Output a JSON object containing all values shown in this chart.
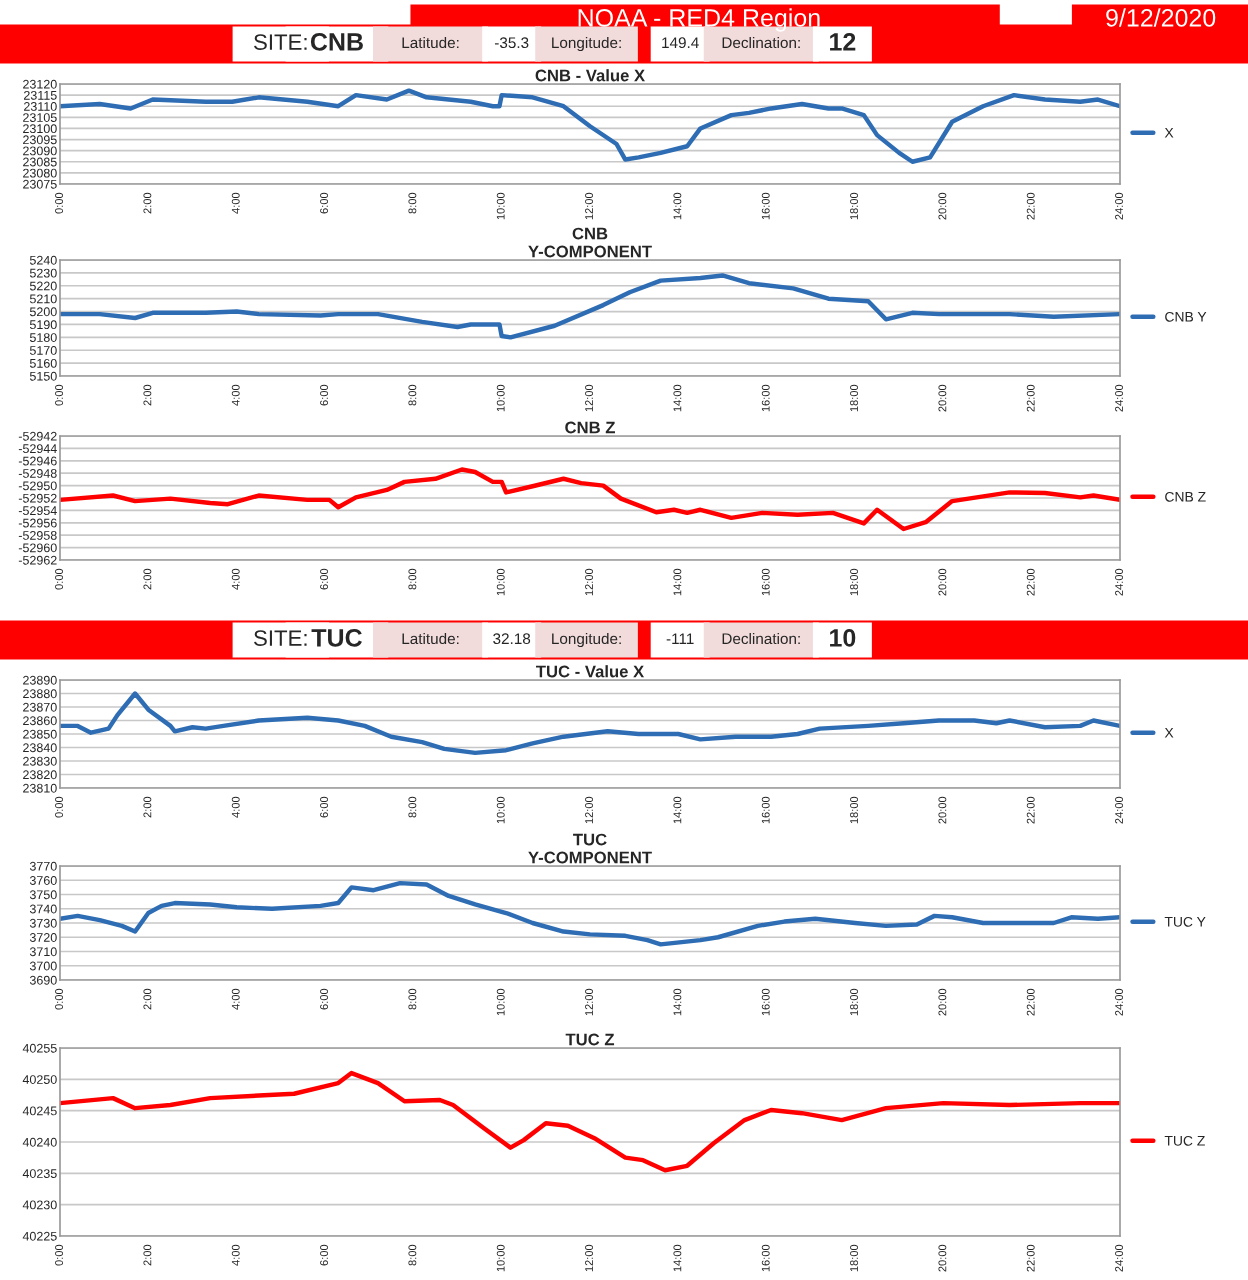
{
  "chart_data": [
    {
      "type": "line",
      "title": "CNB - Value X",
      "annotations": [
        "NOAA - RED4 Region",
        "9/12/2020",
        "SITE:",
        "CNB",
        "Latitude:",
        "-35.3",
        "Longitude:",
        "149.4",
        "Declination:",
        "12"
      ],
      "xlim": [
        0,
        24
      ],
      "ylim": [
        23075,
        23120
      ],
      "yticks": [
        23075,
        23080,
        23085,
        23090,
        23095,
        23100,
        23105,
        23110,
        23115,
        23120
      ],
      "grid": "y",
      "legend": "right",
      "xticks": [
        {
          "value": 0,
          "label": "0:00"
        },
        {
          "value": 2,
          "label": "2:00"
        },
        {
          "value": 4,
          "label": "4:00"
        },
        {
          "value": 6,
          "label": "6:00"
        },
        {
          "value": 8,
          "label": "8:00"
        },
        {
          "value": 10,
          "label": "10:00"
        },
        {
          "value": 12,
          "label": "12:00"
        },
        {
          "value": 14,
          "label": "14:00"
        },
        {
          "value": 16,
          "label": "16:00"
        },
        {
          "value": 18,
          "label": "18:00"
        },
        {
          "value": 20,
          "label": "20:00"
        },
        {
          "value": 22,
          "label": "22:00"
        },
        {
          "value": 24,
          "label": "24:00"
        }
      ],
      "series": [
        {
          "name": "X",
          "color": "#2e6db4",
          "x": [
            0,
            0.9,
            1.6,
            2.1,
            3.3,
            3.9,
            4.5,
            5.6,
            6.3,
            6.7,
            7.4,
            7.9,
            8.3,
            9.3,
            9.8,
            9.95,
            10.0,
            10.7,
            11.4,
            12.0,
            12.6,
            12.8,
            13.1,
            13.6,
            14.2,
            14.5,
            15.2,
            15.6,
            16.1,
            16.8,
            17.4,
            17.7,
            18.2,
            18.5,
            19.0,
            19.3,
            19.7,
            20.2,
            20.9,
            21.6,
            22.3,
            23.1,
            23.5,
            24
          ],
          "values": [
            23110,
            23111,
            23109,
            23113,
            23112,
            23112,
            23114,
            23112,
            23110,
            23115,
            23113,
            23117,
            23114,
            23112,
            23110,
            23110,
            23115,
            23114,
            23110,
            23101,
            23093,
            23086,
            23087,
            23089,
            23092,
            23100,
            23106,
            23107,
            23109,
            23111,
            23109,
            23109,
            23106,
            23097,
            23089,
            23085,
            23087,
            23103,
            23110,
            23115,
            23113,
            23112,
            23113,
            23110
          ]
        }
      ]
    },
    {
      "type": "line",
      "title": "CNB\nY-COMPONENT",
      "xlim": [
        0,
        24
      ],
      "ylim": [
        5150,
        5240
      ],
      "yticks": [
        5150,
        5160,
        5170,
        5180,
        5190,
        5200,
        5210,
        5220,
        5230,
        5240
      ],
      "grid": "y",
      "legend": "right",
      "xticks": [
        {
          "value": 0,
          "label": "0:00"
        },
        {
          "value": 2,
          "label": "2:00"
        },
        {
          "value": 4,
          "label": "4:00"
        },
        {
          "value": 6,
          "label": "6:00"
        },
        {
          "value": 8,
          "label": "8:00"
        },
        {
          "value": 10,
          "label": "10:00"
        },
        {
          "value": 12,
          "label": "12:00"
        },
        {
          "value": 14,
          "label": "14:00"
        },
        {
          "value": 16,
          "label": "16:00"
        },
        {
          "value": 18,
          "label": "18:00"
        },
        {
          "value": 20,
          "label": "20:00"
        },
        {
          "value": 22,
          "label": "22:00"
        },
        {
          "value": 24,
          "label": "24:00"
        }
      ],
      "series": [
        {
          "name": "CNB Y",
          "color": "#2e6db4",
          "x": [
            0,
            0.9,
            1.7,
            2.1,
            3.3,
            4.0,
            4.5,
            5.9,
            6.3,
            7.2,
            8.2,
            9.0,
            9.3,
            9.95,
            10.0,
            10.2,
            11.2,
            12.3,
            12.9,
            13.6,
            14.5,
            15.0,
            15.6,
            16.6,
            17.4,
            18.3,
            18.7,
            19.3,
            19.9,
            21.5,
            22.5,
            24
          ],
          "values": [
            5198,
            5198,
            5195,
            5199,
            5199,
            5200,
            5198,
            5197,
            5198,
            5198,
            5192,
            5188,
            5190,
            5190,
            5181,
            5180,
            5189,
            5205,
            5215,
            5224,
            5226,
            5228,
            5222,
            5218,
            5210,
            5208,
            5194,
            5199,
            5198,
            5198,
            5196,
            5198
          ]
        }
      ]
    },
    {
      "type": "line",
      "title": "CNB Z",
      "xlim": [
        0,
        24
      ],
      "ylim": [
        -52962,
        -52942
      ],
      "yticks": [
        -52962,
        -52960,
        -52958,
        -52956,
        -52954,
        -52952,
        -52950,
        -52948,
        -52946,
        -52944,
        -52942
      ],
      "grid": "y",
      "legend": "right",
      "xticks": [
        {
          "value": 0,
          "label": "0:00"
        },
        {
          "value": 2,
          "label": "2:00"
        },
        {
          "value": 4,
          "label": "4:00"
        },
        {
          "value": 6,
          "label": "6:00"
        },
        {
          "value": 8,
          "label": "8:00"
        },
        {
          "value": 10,
          "label": "10:00"
        },
        {
          "value": 12,
          "label": "12:00"
        },
        {
          "value": 14,
          "label": "14:00"
        },
        {
          "value": 16,
          "label": "16:00"
        },
        {
          "value": 18,
          "label": "18:00"
        },
        {
          "value": 20,
          "label": "20:00"
        },
        {
          "value": 22,
          "label": "22:00"
        },
        {
          "value": 24,
          "label": "24:00"
        }
      ],
      "series": [
        {
          "name": "CNB Z",
          "color": "#ff0000",
          "x": [
            0,
            1.2,
            1.7,
            2.5,
            3.4,
            3.8,
            4.5,
            5.6,
            6.1,
            6.3,
            6.7,
            7.4,
            7.8,
            8.5,
            9.1,
            9.4,
            9.8,
            10.0,
            10.1,
            10.7,
            11.4,
            11.8,
            12.3,
            12.7,
            13.5,
            13.9,
            14.2,
            14.5,
            15.2,
            15.9,
            16.7,
            17.5,
            18.2,
            18.5,
            19.1,
            19.6,
            20.2,
            21.5,
            22.3,
            23.1,
            23.4,
            24
          ],
          "values": [
            -52952.3,
            -52951.6,
            -52952.5,
            -52952.1,
            -52952.8,
            -52953.0,
            -52951.6,
            -52952.3,
            -52952.3,
            -52953.5,
            -52951.9,
            -52950.7,
            -52949.4,
            -52948.9,
            -52947.4,
            -52947.8,
            -52949.4,
            -52949.4,
            -52951.1,
            -52950.1,
            -52948.9,
            -52949.6,
            -52950.0,
            -52952.1,
            -52954.3,
            -52953.9,
            -52954.4,
            -52953.9,
            -52955.2,
            -52954.4,
            -52954.7,
            -52954.4,
            -52956.1,
            -52953.9,
            -52957.0,
            -52955.9,
            -52952.5,
            -52951.1,
            -52951.2,
            -52951.9,
            -52951.6,
            -52952.3
          ]
        }
      ]
    },
    {
      "type": "line",
      "title": "TUC - Value X",
      "annotations": [
        "SITE:",
        "TUC",
        "Latitude:",
        "32.18",
        "Longitude:",
        "-111",
        "Declination:",
        "10"
      ],
      "xlim": [
        0,
        24
      ],
      "ylim": [
        23810,
        23890
      ],
      "yticks": [
        23810,
        23820,
        23830,
        23840,
        23850,
        23860,
        23870,
        23880,
        23890
      ],
      "grid": "y",
      "legend": "right",
      "xticks": [
        {
          "value": 0,
          "label": "0:00"
        },
        {
          "value": 2,
          "label": "2:00"
        },
        {
          "value": 4,
          "label": "4:00"
        },
        {
          "value": 6,
          "label": "6:00"
        },
        {
          "value": 8,
          "label": "8:00"
        },
        {
          "value": 10,
          "label": "10:00"
        },
        {
          "value": 12,
          "label": "12:00"
        },
        {
          "value": 14,
          "label": "14:00"
        },
        {
          "value": 16,
          "label": "16:00"
        },
        {
          "value": 18,
          "label": "18:00"
        },
        {
          "value": 20,
          "label": "20:00"
        },
        {
          "value": 22,
          "label": "22:00"
        },
        {
          "value": 24,
          "label": "24:00"
        }
      ],
      "series": [
        {
          "name": "X",
          "color": "#2e6db4",
          "x": [
            0,
            0.4,
            0.7,
            1.1,
            1.3,
            1.7,
            2.0,
            2.5,
            2.6,
            3.0,
            3.3,
            3.7,
            4.5,
            5.6,
            6.3,
            6.9,
            7.5,
            8.2,
            8.7,
            9.4,
            10.1,
            10.7,
            11.4,
            12.4,
            13.1,
            14.0,
            14.5,
            15.3,
            16.1,
            16.7,
            17.2,
            18.3,
            19.1,
            19.9,
            20.7,
            21.2,
            21.5,
            22.3,
            23.1,
            23.4,
            24
          ],
          "values": [
            23856,
            23856,
            23851,
            23854,
            23864,
            23880,
            23868,
            23856,
            23852,
            23855,
            23854,
            23856,
            23860,
            23862,
            23860,
            23856,
            23848,
            23844,
            23839,
            23836,
            23838,
            23843,
            23848,
            23852,
            23850,
            23850,
            23846,
            23848,
            23848,
            23850,
            23854,
            23856,
            23858,
            23860,
            23860,
            23858,
            23860,
            23855,
            23856,
            23860,
            23856
          ]
        }
      ]
    },
    {
      "type": "line",
      "title": "TUC\nY-COMPONENT",
      "xlim": [
        0,
        24
      ],
      "ylim": [
        3690,
        3770
      ],
      "yticks": [
        3690,
        3700,
        3710,
        3720,
        3730,
        3740,
        3750,
        3760,
        3770
      ],
      "grid": "y",
      "legend": "right",
      "xticks": [
        {
          "value": 0,
          "label": "0:00"
        },
        {
          "value": 2,
          "label": "2:00"
        },
        {
          "value": 4,
          "label": "4:00"
        },
        {
          "value": 6,
          "label": "6:00"
        },
        {
          "value": 8,
          "label": "8:00"
        },
        {
          "value": 10,
          "label": "10:00"
        },
        {
          "value": 12,
          "label": "12:00"
        },
        {
          "value": 14,
          "label": "14:00"
        },
        {
          "value": 16,
          "label": "16:00"
        },
        {
          "value": 18,
          "label": "18:00"
        },
        {
          "value": 20,
          "label": "20:00"
        },
        {
          "value": 22,
          "label": "22:00"
        },
        {
          "value": 24,
          "label": "24:00"
        }
      ],
      "series": [
        {
          "name": "TUC Y",
          "color": "#2e6db4",
          "x": [
            0,
            0.4,
            0.9,
            1.4,
            1.7,
            2.0,
            2.3,
            2.6,
            3.4,
            4.0,
            4.8,
            5.9,
            6.3,
            6.6,
            7.1,
            7.7,
            8.3,
            8.8,
            9.4,
            10.1,
            10.7,
            11.4,
            12.0,
            12.8,
            13.3,
            13.6,
            14.5,
            14.9,
            15.8,
            16.4,
            17.1,
            18.0,
            18.7,
            19.4,
            19.8,
            20.2,
            20.9,
            21.5,
            22.5,
            22.9,
            23.5,
            24
          ],
          "values": [
            3733,
            3735,
            3732,
            3728,
            3724,
            3737,
            3742,
            3744,
            3743,
            3741,
            3740,
            3742,
            3744,
            3755,
            3753,
            3758,
            3757,
            3749,
            3743,
            3737,
            3730,
            3724,
            3722,
            3721,
            3718,
            3715,
            3718,
            3720,
            3728,
            3731,
            3733,
            3730,
            3728,
            3729,
            3735,
            3734,
            3730,
            3730,
            3730,
            3734,
            3733,
            3734
          ]
        }
      ]
    },
    {
      "type": "line",
      "title": "TUC Z",
      "xlim": [
        0,
        24
      ],
      "ylim": [
        40225,
        40255
      ],
      "yticks": [
        40225,
        40230,
        40235,
        40240,
        40245,
        40250,
        40255
      ],
      "grid": "y",
      "legend": "right",
      "xticks": [
        {
          "value": 0,
          "label": "0:00"
        },
        {
          "value": 2,
          "label": "2:00"
        },
        {
          "value": 4,
          "label": "4:00"
        },
        {
          "value": 6,
          "label": "6:00"
        },
        {
          "value": 8,
          "label": "8:00"
        },
        {
          "value": 10,
          "label": "10:00"
        },
        {
          "value": 12,
          "label": "12:00"
        },
        {
          "value": 14,
          "label": "14:00"
        },
        {
          "value": 16,
          "label": "16:00"
        },
        {
          "value": 18,
          "label": "18:00"
        },
        {
          "value": 20,
          "label": "20:00"
        },
        {
          "value": 22,
          "label": "22:00"
        },
        {
          "value": 24,
          "label": "24:00"
        }
      ],
      "series": [
        {
          "name": "TUC Z",
          "color": "#ff0000",
          "x": [
            0,
            1.2,
            1.7,
            2.5,
            3.4,
            5.3,
            6.3,
            6.6,
            7.2,
            7.8,
            8.6,
            8.9,
            9.6,
            10.2,
            10.5,
            11.0,
            11.5,
            12.1,
            12.8,
            13.2,
            13.7,
            14.2,
            14.8,
            15.5,
            16.1,
            16.8,
            17.7,
            18.7,
            20.0,
            21.5,
            23.1,
            24
          ],
          "values": [
            40246.2,
            40247.0,
            40245.4,
            40245.9,
            40247.0,
            40247.7,
            40249.4,
            40251.0,
            40249.4,
            40246.5,
            40246.7,
            40245.9,
            40242.2,
            40239.1,
            40240.3,
            40243.0,
            40242.6,
            40240.6,
            40237.5,
            40237.1,
            40235.5,
            40236.2,
            40239.8,
            40243.5,
            40245.1,
            40244.6,
            40243.5,
            40245.4,
            40246.2,
            40245.9,
            40246.2,
            40246.2
          ]
        }
      ]
    }
  ]
}
